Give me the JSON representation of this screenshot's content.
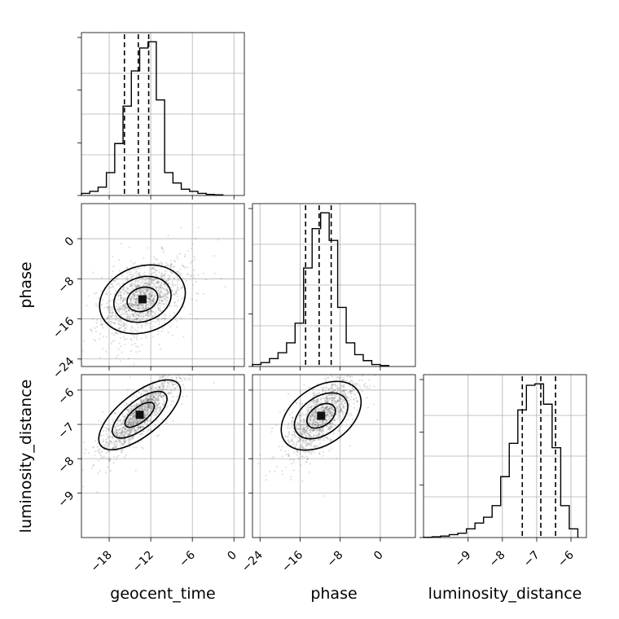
{
  "chart_data": {
    "type": "corner",
    "parameters": [
      "geocent_time",
      "phase",
      "luminosity_distance"
    ],
    "axis_labels": {
      "x": [
        "geocent_time",
        "phase",
        "luminosity_distance"
      ],
      "y": [
        "",
        "phase",
        "luminosity_distance"
      ]
    },
    "ranges": {
      "geocent_time": [
        -22,
        1.5
      ],
      "phase": [
        -25.5,
        7
      ],
      "luminosity_distance": [
        -10.3,
        -5.55
      ]
    },
    "ticks": {
      "geocent_time": [
        -18,
        -12,
        -6,
        0
      ],
      "phase": [
        -24,
        -16,
        -8,
        0
      ],
      "luminosity_distance": [
        -9,
        -8,
        -7,
        -6
      ]
    },
    "grid": true,
    "histograms": [
      {
        "param": "geocent_time",
        "edges": [
          -22,
          -20.8,
          -19.6,
          -18.4,
          -17.2,
          -16,
          -14.8,
          -13.6,
          -12.4,
          -11.2,
          -10,
          -8.8,
          -7.6,
          -6.4,
          -5.2,
          -4,
          -2.8,
          -1.6
        ],
        "counts": [
          1,
          2,
          4,
          11,
          25,
          43,
          60,
          71,
          74,
          46,
          11,
          6,
          3,
          2,
          1,
          0.5,
          0.3
        ],
        "quantiles": [
          -15.8,
          -13.8,
          -12.3
        ]
      },
      {
        "param": "phase",
        "edges": [
          -25.5,
          -23.8,
          -22.1,
          -20.4,
          -18.7,
          -17,
          -15.3,
          -13.6,
          -11.9,
          -10.2,
          -8.5,
          -6.8,
          -5.1,
          -3.4,
          -1.7,
          0,
          1.7
        ],
        "counts": [
          1,
          2,
          4,
          7,
          12,
          22,
          50,
          70,
          78,
          64,
          30,
          12,
          6,
          3,
          1,
          0.5
        ],
        "quantiles": [
          -14.9,
          -12.2,
          -9.8
        ]
      },
      {
        "param": "luminosity_distance",
        "edges": [
          -10.3,
          -10.05,
          -9.8,
          -9.55,
          -9.3,
          -9.05,
          -8.8,
          -8.55,
          -8.3,
          -8.05,
          -7.8,
          -7.55,
          -7.3,
          -7.05,
          -6.8,
          -6.55,
          -6.3,
          -6.05,
          -5.8
        ],
        "counts": [
          0.2,
          0.5,
          1,
          2,
          3,
          6,
          10,
          14,
          22,
          42,
          65,
          88,
          105,
          106,
          92,
          62,
          22,
          6
        ],
        "quantiles": [
          -7.42,
          -6.88,
          -6.45
        ]
      }
    ],
    "density_panels": [
      {
        "x": "geocent_time",
        "y": "phase",
        "peak": [
          -13.2,
          -12.1
        ],
        "spread": [
          2.8,
          3.5
        ],
        "corr": 0.45,
        "contour_levels": 3
      },
      {
        "x": "geocent_time",
        "y": "luminosity_distance",
        "peak": [
          -13.6,
          -6.72
        ],
        "spread": [
          2.5,
          0.55
        ],
        "corr": 0.85,
        "contour_levels": 3
      },
      {
        "x": "phase",
        "y": "luminosity_distance",
        "peak": [
          -11.8,
          -6.75
        ],
        "spread": [
          3.3,
          0.55
        ],
        "corr": 0.7,
        "contour_levels": 3
      }
    ]
  }
}
